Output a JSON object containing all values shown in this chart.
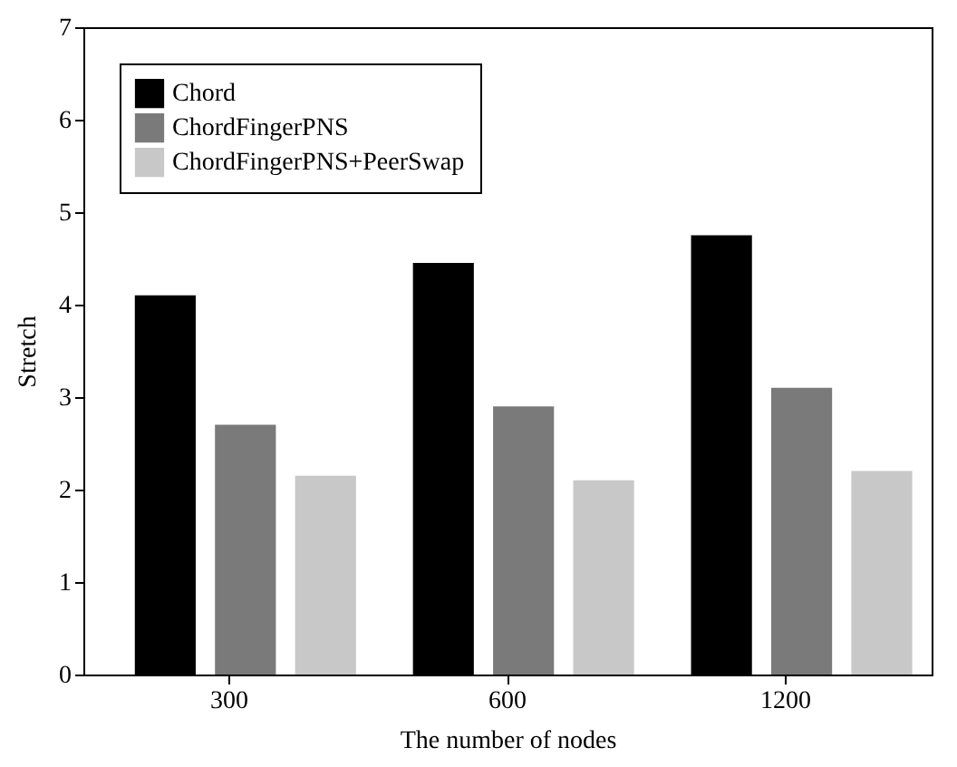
{
  "chart_data": {
    "type": "bar",
    "xlabel": "The number of nodes",
    "ylabel": "Stretch",
    "categories": [
      "300",
      "600",
      "1200"
    ],
    "series": [
      {
        "name": "Chord",
        "color": "#000000",
        "values": [
          4.1,
          4.45,
          4.75
        ]
      },
      {
        "name": "ChordFingerPNS",
        "color": "#7a7a7a",
        "values": [
          2.7,
          2.9,
          3.1
        ]
      },
      {
        "name": "ChordFingerPNS+PeerSwap",
        "color": "#c8c8c8",
        "values": [
          2.15,
          2.1,
          2.2
        ]
      }
    ],
    "ylim": [
      0,
      7
    ],
    "yticks": [
      0,
      1,
      2,
      3,
      4,
      5,
      6,
      7
    ],
    "grid": false,
    "legend": "top left"
  }
}
